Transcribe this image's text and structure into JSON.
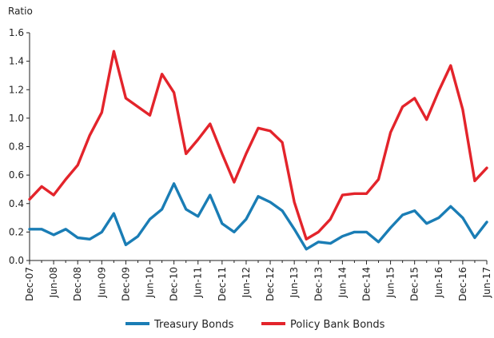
{
  "chart_data": {
    "type": "line",
    "title": "",
    "xlabel": "",
    "ylabel": "Ratio",
    "ylim": [
      0,
      1.6
    ],
    "yticks": [
      "0.0",
      "0.2",
      "0.4",
      "0.6",
      "0.8",
      "1.0",
      "1.2",
      "1.4",
      "1.6"
    ],
    "grid": false,
    "legend_position": "bottom",
    "x_tick_labels": [
      "Dec-07",
      "Jun-08",
      "Dec-08",
      "Jun-09",
      "Dec-09",
      "Jun-10",
      "Dec-10",
      "Jun-11",
      "Dec-11",
      "Jun-12",
      "Dec-12",
      "Jun-13",
      "Dec-13",
      "Jun-14",
      "Dec-14",
      "Jun-15",
      "Dec-15",
      "Jun-16",
      "Dec-16",
      "Jun-17"
    ],
    "x": [
      "Dec-07",
      "Mar-08",
      "Jun-08",
      "Sep-08",
      "Dec-08",
      "Mar-09",
      "Jun-09",
      "Sep-09",
      "Dec-09",
      "Mar-10",
      "Jun-10",
      "Sep-10",
      "Dec-10",
      "Mar-11",
      "Jun-11",
      "Sep-11",
      "Dec-11",
      "Mar-12",
      "Jun-12",
      "Sep-12",
      "Dec-12",
      "Mar-13",
      "Jun-13",
      "Sep-13",
      "Dec-13",
      "Mar-14",
      "Jun-14",
      "Sep-14",
      "Dec-14",
      "Mar-15",
      "Jun-15",
      "Sep-15",
      "Dec-15",
      "Mar-16",
      "Jun-16",
      "Sep-16",
      "Dec-16",
      "Mar-17",
      "Jun-17"
    ],
    "series": [
      {
        "name": "Treasury Bonds",
        "color": "#1a7db5",
        "values": [
          0.22,
          0.22,
          0.18,
          0.22,
          0.16,
          0.15,
          0.2,
          0.33,
          0.11,
          0.17,
          0.29,
          0.36,
          0.54,
          0.36,
          0.31,
          0.46,
          0.26,
          0.2,
          0.29,
          0.45,
          0.41,
          0.35,
          0.22,
          0.08,
          0.13,
          0.12,
          0.17,
          0.2,
          0.2,
          0.13,
          0.23,
          0.32,
          0.35,
          0.26,
          0.3,
          0.38,
          0.3,
          0.16,
          0.27
        ]
      },
      {
        "name": "Policy Bank Bonds",
        "color": "#e3242b",
        "values": [
          0.43,
          0.52,
          0.46,
          0.57,
          0.67,
          0.88,
          1.04,
          1.47,
          1.14,
          1.08,
          1.02,
          1.31,
          1.18,
          0.75,
          0.85,
          0.96,
          0.75,
          0.55,
          0.75,
          0.93,
          0.91,
          0.83,
          0.41,
          0.15,
          0.2,
          0.29,
          0.46,
          0.47,
          0.47,
          0.57,
          0.9,
          1.08,
          1.14,
          0.99,
          1.19,
          1.37,
          1.06,
          0.56,
          0.65
        ]
      }
    ]
  }
}
